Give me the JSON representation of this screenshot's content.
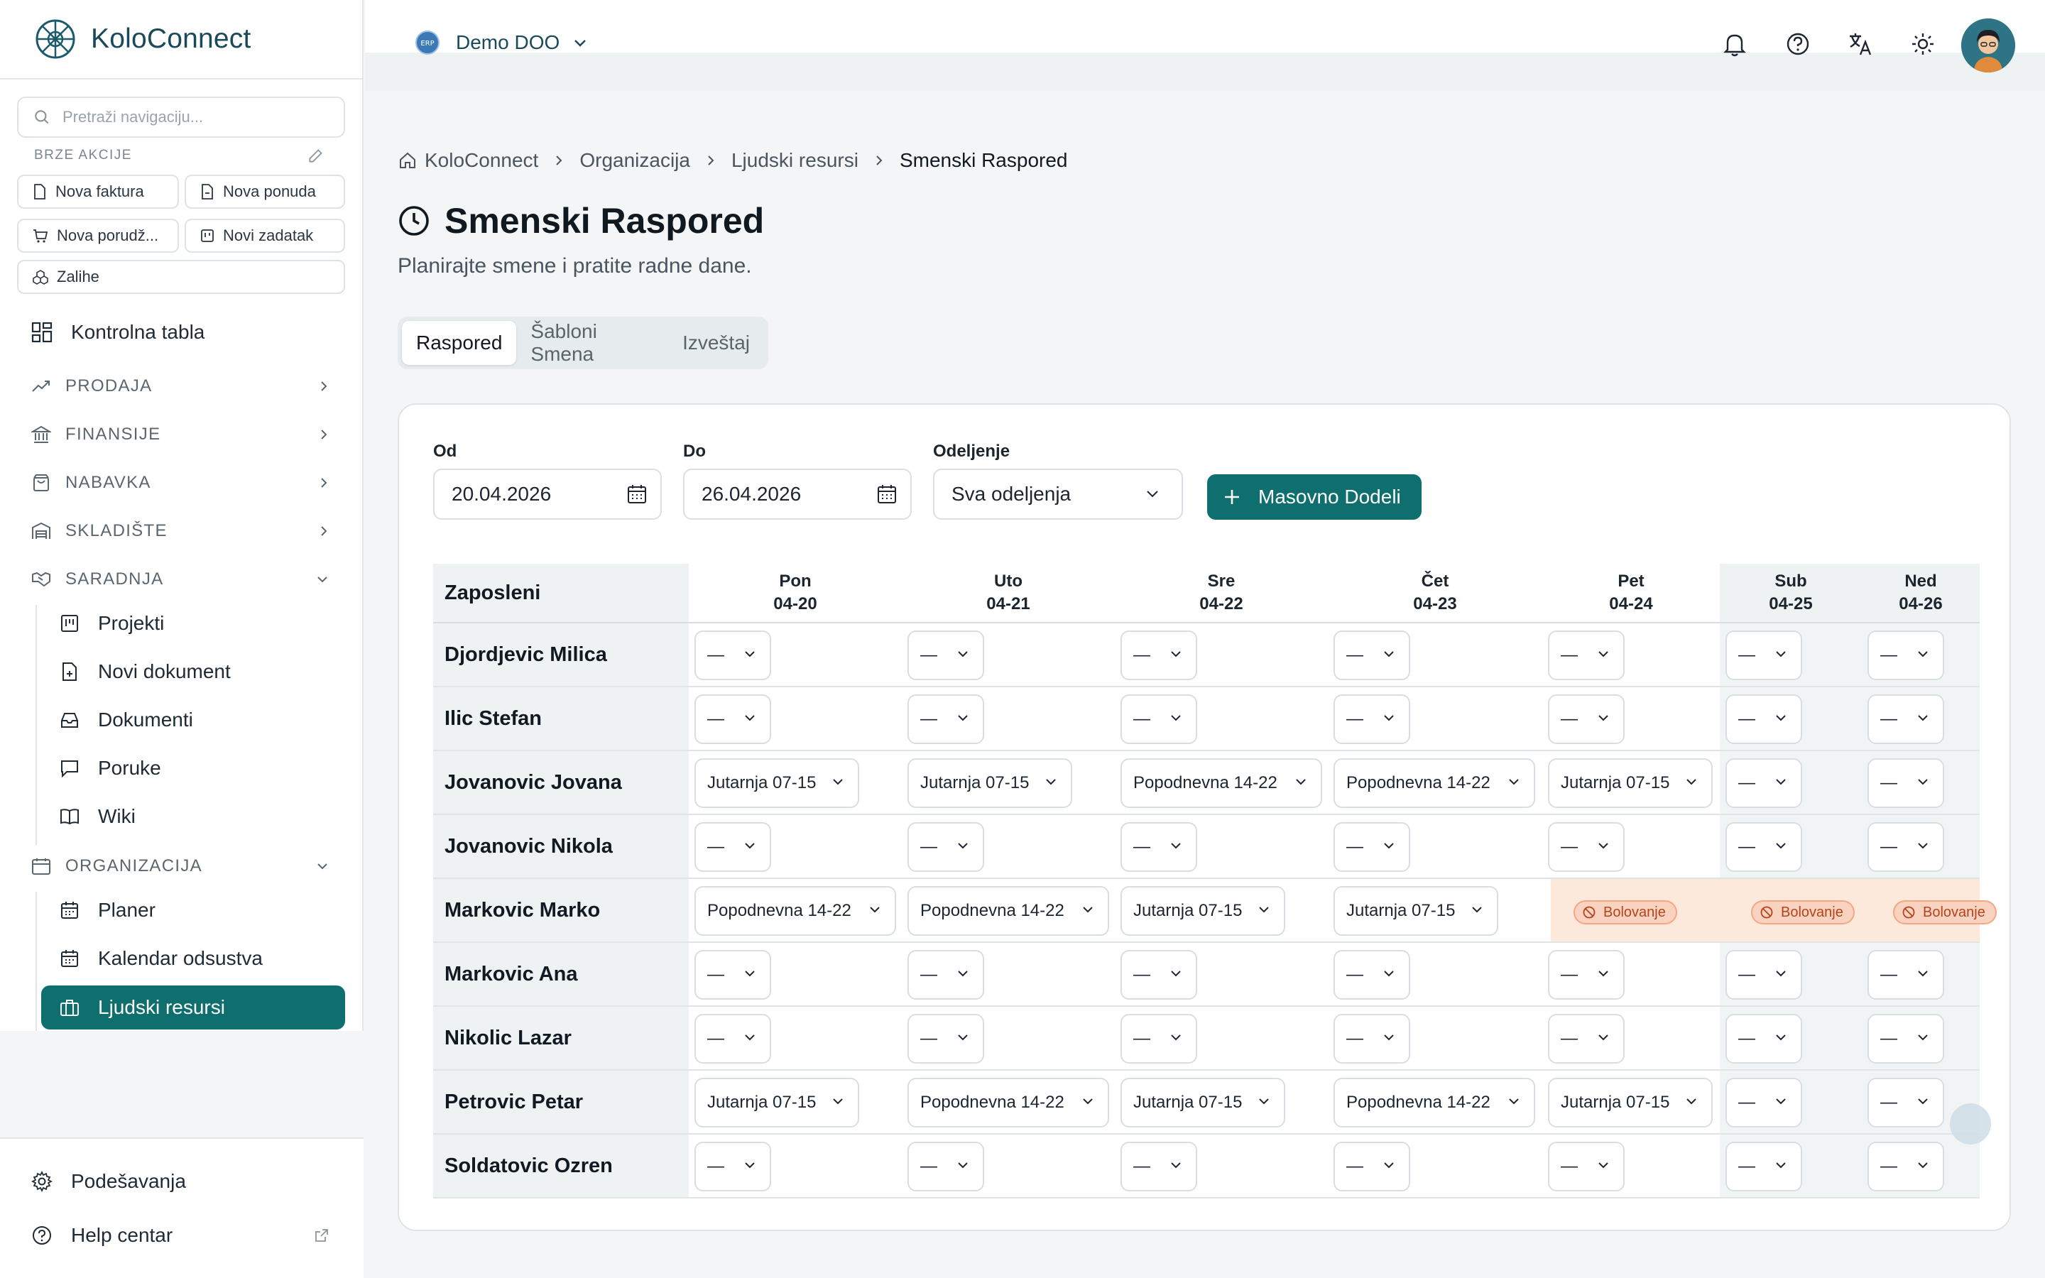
{
  "app": {
    "name": "KoloConnect"
  },
  "sidebar": {
    "search_placeholder": "Pretraži navigaciju...",
    "quick_actions_title": "BRZE AKCIJE",
    "quick_actions": [
      "Nova faktura",
      "Nova ponuda",
      "Nova porudž...",
      "Novi zadatak",
      "Zalihe"
    ],
    "dashboard": "Kontrolna tabla",
    "sections": {
      "sales": "PRODAJA",
      "finance": "FINANSIJE",
      "procurement": "NABAVKA",
      "warehouse": "SKLADIŠTE",
      "collaboration": "SARADNJA",
      "organization": "ORGANIZACIJA"
    },
    "collaboration_items": [
      "Projekti",
      "Novi dokument",
      "Dokumenti",
      "Poruke",
      "Wiki"
    ],
    "organization_items": [
      "Planer",
      "Kalendar odsustva",
      "Ljudski resursi"
    ],
    "settings": "Podešavanja",
    "help": "Help centar"
  },
  "topbar": {
    "company": "Demo DOO",
    "company_badge": "ERP"
  },
  "breadcrumb": [
    "KoloConnect",
    "Organizacija",
    "Ljudski resursi",
    "Smenski Raspored"
  ],
  "page": {
    "title": "Smenski Raspored",
    "subtitle": "Planirajte smene i pratite radne dane."
  },
  "tabs": [
    "Raspored",
    "Šabloni Smena",
    "Izveštaj"
  ],
  "filters": {
    "from_label": "Od",
    "from_value": "20.04.2026",
    "to_label": "Do",
    "to_value": "26.04.2026",
    "dept_label": "Odeljenje",
    "dept_value": "Sva odeljenja",
    "bulk_button": "Masovno Dodeli"
  },
  "schedule": {
    "employee_header": "Zaposleni",
    "days": [
      {
        "name": "Pon",
        "date": "04-20"
      },
      {
        "name": "Uto",
        "date": "04-21"
      },
      {
        "name": "Sre",
        "date": "04-22"
      },
      {
        "name": "Čet",
        "date": "04-23"
      },
      {
        "name": "Pet",
        "date": "04-24"
      },
      {
        "name": "Sub",
        "date": "04-25"
      },
      {
        "name": "Ned",
        "date": "04-26"
      }
    ],
    "empty_value": "—",
    "absence_label": "Bolovanje",
    "rows": [
      {
        "name": "Djordjevic Milica",
        "shifts": [
          "",
          "",
          "",
          "",
          "",
          "",
          ""
        ]
      },
      {
        "name": "Ilic Stefan",
        "shifts": [
          "",
          "",
          "",
          "",
          "",
          "",
          ""
        ]
      },
      {
        "name": "Jovanovic Jovana",
        "shifts": [
          "Jutarnja 07-15",
          "Jutarnja 07-15",
          "Popodnevna 14-22",
          "Popodnevna 14-22",
          "Jutarnja 07-15",
          "",
          ""
        ]
      },
      {
        "name": "Jovanovic Nikola",
        "shifts": [
          "",
          "",
          "",
          "",
          "",
          "",
          ""
        ]
      },
      {
        "name": "Markovic Marko",
        "shifts": [
          "Popodnevna 14-22",
          "Popodnevna 14-22",
          "Jutarnja 07-15",
          "Jutarnja 07-15",
          "ABSENCE",
          "ABSENCE",
          "ABSENCE"
        ]
      },
      {
        "name": "Markovic Ana",
        "shifts": [
          "",
          "",
          "",
          "",
          "",
          "",
          ""
        ]
      },
      {
        "name": "Nikolic Lazar",
        "shifts": [
          "",
          "",
          "",
          "",
          "",
          "",
          ""
        ]
      },
      {
        "name": "Petrovic Petar",
        "shifts": [
          "Jutarnja 07-15",
          "Popodnevna 14-22",
          "Jutarnja 07-15",
          "Popodnevna 14-22",
          "Jutarnja 07-15",
          "",
          ""
        ]
      },
      {
        "name": "Soldatovic Ozren",
        "shifts": [
          "",
          "",
          "",
          "",
          "",
          "",
          ""
        ]
      }
    ]
  },
  "colors": {
    "primary": "#0f6e6e",
    "absence_bg": "#fde9dc",
    "absence_text": "#b3441e"
  },
  "icons": [
    "search-icon",
    "pencil-icon",
    "bell-icon",
    "help-circle-icon",
    "translate-icon",
    "sun-icon",
    "calendar-icon",
    "chevron-down-icon",
    "plus-icon",
    "clock-icon",
    "home-icon",
    "ban-icon"
  ]
}
